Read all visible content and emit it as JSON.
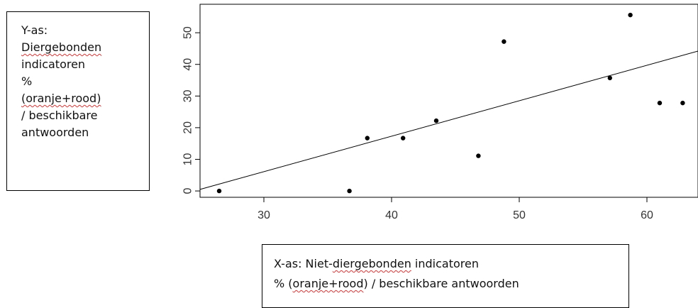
{
  "chart_data": {
    "type": "scatter",
    "x": [
      26.5,
      36.7,
      38.1,
      40.9,
      43.5,
      46.8,
      48.8,
      57.1,
      58.7,
      61.0,
      62.8
    ],
    "y": [
      0,
      0,
      16.7,
      16.7,
      22.2,
      11.1,
      47.2,
      35.7,
      55.6,
      27.8,
      27.8
    ],
    "xlim": [
      25,
      64
    ],
    "ylim": [
      -2,
      59
    ],
    "xticks": [
      30,
      40,
      50,
      60
    ],
    "yticks": [
      0,
      10,
      20,
      30,
      40,
      50
    ],
    "regression_line": {
      "x": [
        25,
        64
      ],
      "y": [
        0.5,
        44.2
      ]
    },
    "grid": false
  },
  "y_note": {
    "lines": [
      "Y-as:",
      "Diergebonden",
      "indicatoren",
      "%",
      "(oranje+rood)",
      "/ beschikbare",
      "antwoorden"
    ]
  },
  "x_note": {
    "line1_prefix": "X-as: Niet-",
    "line1_word": "diergebonden",
    "line1_suffix": " indicatoren",
    "line2_prefix": "% (",
    "line2_word": "oranje+rood",
    "line2_suffix": ") / beschikbare antwoorden"
  }
}
